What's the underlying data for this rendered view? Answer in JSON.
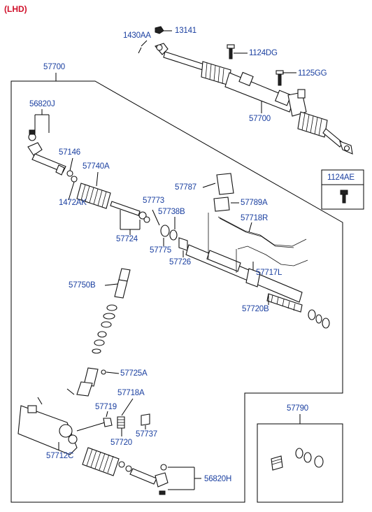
{
  "header": {
    "variant": "(LHD)"
  },
  "colors": {
    "label": "#1a3fa0",
    "variant": "#d0112b",
    "line": "#000000"
  },
  "labels": {
    "p13141": "13141",
    "p1430AA": "1430AA",
    "p1124DG": "1124DG",
    "p1125GG": "1125GG",
    "p57700_top": "57700",
    "p57700_box": "57700",
    "p56820J": "56820J",
    "p57146": "57146",
    "p57740A": "57740A",
    "p1472AK": "1472AK",
    "p57787": "57787",
    "p57789A": "57789A",
    "p57773": "57773",
    "p57738B": "57738B",
    "p57718R": "57718R",
    "p57724": "57724",
    "p57775": "57775",
    "p57726": "57726",
    "p57717L": "57717L",
    "p57750B": "57750B",
    "p57720B": "57720B",
    "p57725A": "57725A",
    "p57718A": "57718A",
    "p57719": "57719",
    "p57720": "57720",
    "p57737": "57737",
    "p57712C": "57712C",
    "p56820H": "56820H",
    "p57790": "57790",
    "p1124AE": "1124AE"
  }
}
